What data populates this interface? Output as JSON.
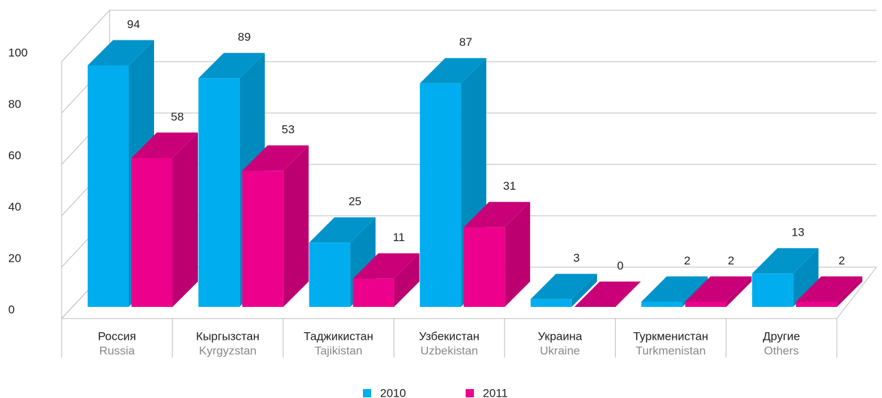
{
  "chart_data": {
    "type": "bar3d",
    "categories": [
      "Россия",
      "Кыргызстан",
      "Таджикистан",
      "Узбекистан",
      "Украина",
      "Туркменистан",
      "Другие"
    ],
    "categories_en": [
      "Russia",
      "Kyrgyzstan",
      "Tajikistan",
      "Uzbekistan",
      "Ukraine",
      "Turkmenistan",
      "Others"
    ],
    "series": [
      {
        "name": "2010",
        "color": "#00aeef",
        "values": [
          94,
          89,
          25,
          87,
          3,
          2,
          13
        ]
      },
      {
        "name": "2011",
        "color": "#ec008c",
        "values": [
          58,
          53,
          11,
          31,
          0,
          2,
          2
        ]
      }
    ],
    "ylim": [
      0,
      100
    ],
    "yticks": [
      0,
      20,
      40,
      60,
      80,
      100
    ],
    "grid": true,
    "legend": "bottom"
  }
}
